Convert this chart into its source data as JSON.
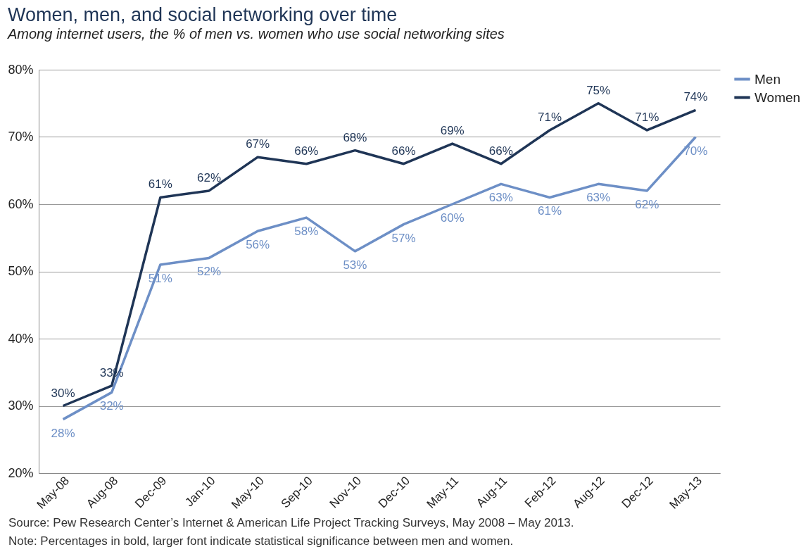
{
  "chart_data": {
    "type": "line",
    "title": "Women, men, and social networking over time",
    "subtitle": "Among internet users, the % of men vs. women who use social networking sites",
    "categories": [
      "May-08",
      "Aug-08",
      "Dec-09",
      "Jan-10",
      "May-10",
      "Sep-10",
      "Nov-10",
      "Dec-10",
      "May-11",
      "Aug-11",
      "Feb-12",
      "Aug-12",
      "Dec-12",
      "May-13"
    ],
    "series": [
      {
        "name": "Men",
        "color": "#6d8fc6",
        "values": [
          28,
          32,
          51,
          52,
          56,
          58,
          53,
          57,
          60,
          63,
          61,
          63,
          62,
          70
        ],
        "value_labels": [
          "28%",
          "32%",
          "51%",
          "52%",
          "56%",
          "58%",
          "53%",
          "57%",
          "60%",
          "63%",
          "61%",
          "63%",
          "62%",
          "70%"
        ]
      },
      {
        "name": "Women",
        "color": "#1f3556",
        "values": [
          30,
          33,
          61,
          62,
          67,
          66,
          68,
          66,
          69,
          66,
          71,
          75,
          71,
          74
        ],
        "value_labels": [
          "30%",
          "33%",
          "61%",
          "62%",
          "67%",
          "66%",
          "68%",
          "66%",
          "69%",
          "66%",
          "71%",
          "75%",
          "71%",
          "74%"
        ]
      }
    ],
    "ylim": [
      20,
      80
    ],
    "yticks": [
      {
        "value": 20,
        "label": "20%"
      },
      {
        "value": 30,
        "label": "30%"
      },
      {
        "value": 40,
        "label": "40%"
      },
      {
        "value": 50,
        "label": "50%"
      },
      {
        "value": 60,
        "label": "60%"
      },
      {
        "value": 70,
        "label": "70%"
      },
      {
        "value": 80,
        "label": "80%"
      }
    ],
    "grid": "y",
    "legend": "right",
    "marker": "none",
    "line_style": "solid",
    "annotations": [
      "Source: Pew Research Center’s Internet & American Life Project Tracking Surveys, May 2008 – May 2013.",
      "Note: Percentages in bold, larger font indicate statistical significance between men and women."
    ]
  }
}
